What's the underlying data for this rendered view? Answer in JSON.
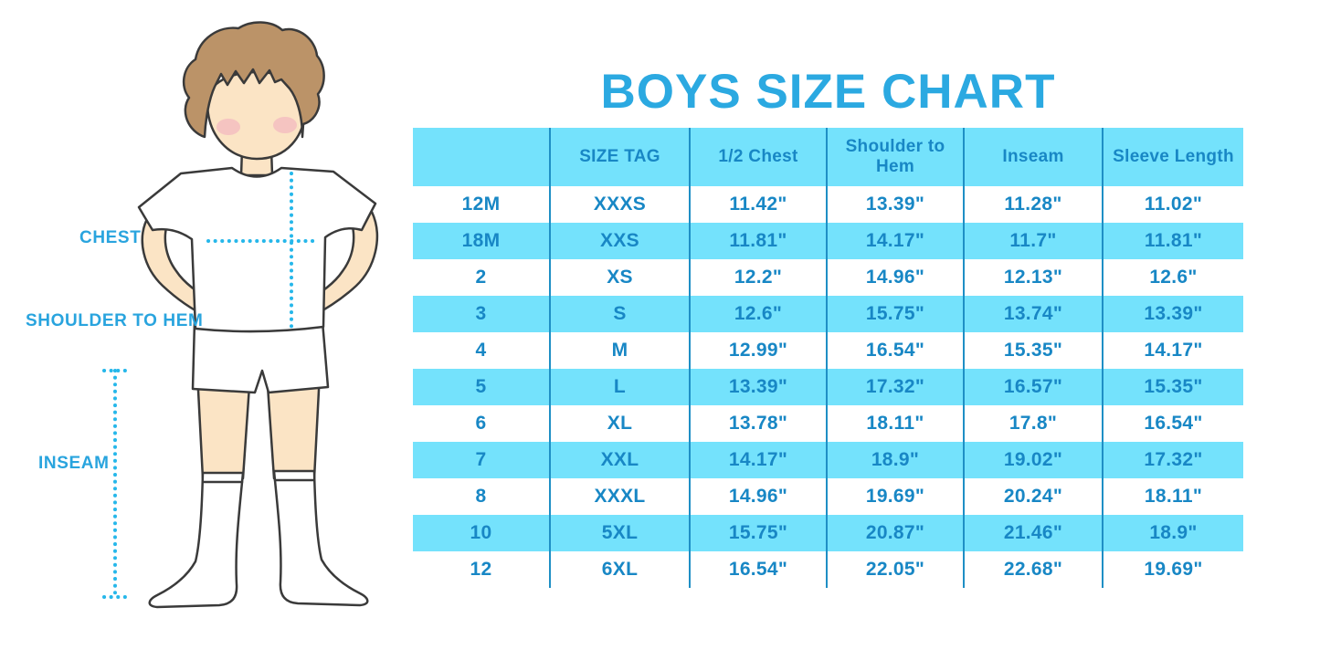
{
  "title": "BOYS SIZE CHART",
  "figure": {
    "description": "cartoon boy in white t-shirt, shorts and knee socks with measurement guides",
    "labels": {
      "chest": "CHEST",
      "shoulder_to_hem": "SHOULDER TO HEM",
      "inseam": "INSEAM"
    }
  },
  "colors": {
    "title_blue": "#2ba9e1",
    "table_text_blue": "#1887c5",
    "band_cyan": "#74e2fc",
    "rule_blue": "#1f8fc5",
    "dotted_line_cyan": "#26b7ea",
    "hair_brown": "#bb9368",
    "skin": "#fbe4c5",
    "cheek_pink": "#f0a9be"
  },
  "chart_data": {
    "type": "table",
    "title": "BOYS SIZE CHART",
    "columns": [
      "",
      "SIZE TAG",
      "1/2 Chest",
      "Shoulder to Hem",
      "Inseam",
      "Sleeve Length"
    ],
    "rows": [
      [
        "12M",
        "XXXS",
        "11.42\"",
        "13.39\"",
        "11.28\"",
        "11.02\""
      ],
      [
        "18M",
        "XXS",
        "11.81\"",
        "14.17\"",
        "11.7\"",
        "11.81\""
      ],
      [
        "2",
        "XS",
        "12.2\"",
        "14.96\"",
        "12.13\"",
        "12.6\""
      ],
      [
        "3",
        "S",
        "12.6\"",
        "15.75\"",
        "13.74\"",
        "13.39\""
      ],
      [
        "4",
        "M",
        "12.99\"",
        "16.54\"",
        "15.35\"",
        "14.17\""
      ],
      [
        "5",
        "L",
        "13.39\"",
        "17.32\"",
        "16.57\"",
        "15.35\""
      ],
      [
        "6",
        "XL",
        "13.78\"",
        "18.11\"",
        "17.8\"",
        "16.54\""
      ],
      [
        "7",
        "XXL",
        "14.17\"",
        "18.9\"",
        "19.02\"",
        "17.32\""
      ],
      [
        "8",
        "XXXL",
        "14.96\"",
        "19.69\"",
        "20.24\"",
        "18.11\""
      ],
      [
        "10",
        "5XL",
        "15.75\"",
        "20.87\"",
        "21.46\"",
        "18.9\""
      ],
      [
        "12",
        "6XL",
        "16.54\"",
        "22.05\"",
        "22.68\"",
        "19.69\""
      ]
    ],
    "layout": {
      "striped": true,
      "stripe_order": "header cyan, then rows alternate white/cyan",
      "vertical_rules_only": true
    }
  }
}
